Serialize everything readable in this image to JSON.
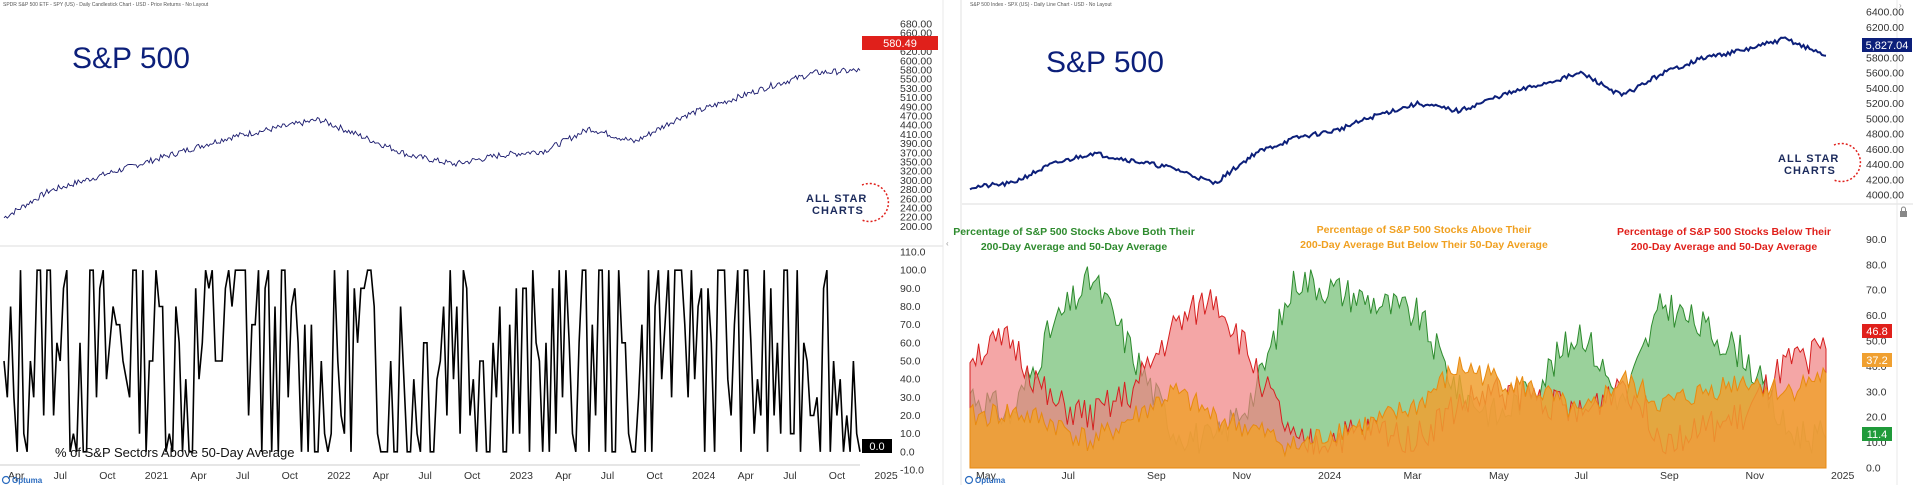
{
  "left_chart": {
    "header": "SPDR S&P 500 ETF - SPY (US) - Daily Candlestick Chart - USD - Price Returns - No Layout",
    "title": "S&P 500",
    "brand_line1": "ALL STAR",
    "brand_line2": "CHARTS",
    "logo": "Optuma",
    "x_labels": [
      "Apr",
      "Jul",
      "Oct",
      "2021",
      "Apr",
      "Jul",
      "Oct",
      "2022",
      "Apr",
      "Jul",
      "Oct",
      "2023",
      "Apr",
      "Jul",
      "Oct",
      "2024",
      "Apr",
      "Jul",
      "Oct",
      "2025"
    ],
    "upper_axis": {
      "ticks": [
        "680.00",
        "660.00",
        "640.00",
        "620.00",
        "600.00",
        "580.00",
        "550.00",
        "530.00",
        "510.00",
        "490.00",
        "470.00",
        "440.00",
        "410.00",
        "390.00",
        "370.00",
        "350.00",
        "320.00",
        "300.00",
        "280.00",
        "260.00",
        "240.00",
        "220.00",
        "200.00"
      ],
      "last_value": "580.49"
    },
    "lower_axis": {
      "ticks": [
        "110.0",
        "100.0",
        "90.0",
        "80.0",
        "70.0",
        "60.0",
        "50.0",
        "40.0",
        "30.0",
        "20.0",
        "10.0",
        "0.0",
        "-10.0"
      ],
      "last_value": "0.0"
    },
    "lower_caption": "% of S&P Sectors Above 50-Day Average"
  },
  "right_chart": {
    "header": "S&P 500 Index - SPX (US) - Daily Line Chart - USD - No Layout",
    "title": "S&P 500",
    "brand_line1": "ALL STAR",
    "brand_line2": "CHARTS",
    "logo": "Optuma",
    "x_labels": [
      "May",
      "Jul",
      "Sep",
      "Nov",
      "2024",
      "Mar",
      "May",
      "Jul",
      "Sep",
      "Nov",
      "2025"
    ],
    "upper_axis": {
      "ticks": [
        "6400.00",
        "6200.00",
        "6000.00",
        "5800.00",
        "5600.00",
        "5400.00",
        "5200.00",
        "5000.00",
        "4800.00",
        "4600.00",
        "4400.00",
        "4200.00",
        "4000.00"
      ],
      "last_value": "5,827.04"
    },
    "lower_axis": {
      "ticks": [
        "90.0",
        "80.0",
        "70.0",
        "60.0",
        "50.0",
        "40.0",
        "30.0",
        "20.0",
        "10.0",
        "0.0"
      ]
    },
    "series_last_values": {
      "red": "46.8",
      "orange": "37.2",
      "green": "11.4"
    },
    "annotations": {
      "green": [
        "Percentage of S&P 500 Stocks Above Both Their",
        "200-Day Average and 50-Day Average"
      ],
      "orange": [
        "Percentage of S&P 500 Stocks Above Their",
        "200-Day Average But Below Their 50-Day Average"
      ],
      "red": [
        "Percentage of S&P 500 Stocks Below Their",
        "200-Day Average and 50-Day Average"
      ]
    }
  },
  "colors": {
    "navy": "#0c1f7a",
    "price_label_red": "#e0201b",
    "green_fill": "#78c27a",
    "green_line": "#2e8b2e",
    "red_fill": "#f08080",
    "red_line": "#d62020",
    "orange_fill": "#f0a030",
    "orange_line": "#e88a10",
    "annotation_green": "#2e8b2e",
    "annotation_orange": "#f0a020",
    "annotation_red": "#e0201b"
  },
  "chart_data": [
    {
      "type": "line",
      "title": "S&P 500",
      "series": [
        {
          "name": "",
          "x": [
            "2020-04",
            "2020-07",
            "2020-10",
            "2021-01",
            "2021-04",
            "2021-07",
            "2021-10",
            "2022-01",
            "2022-04",
            "2022-07",
            "2022-10",
            "2023-01",
            "2023-04",
            "2023-07",
            "2023-10",
            "2024-01",
            "2024-04",
            "2024-07",
            "2024-10",
            "2024-12"
          ],
          "values": [
            250,
            310,
            340,
            370,
            400,
            430,
            450,
            470,
            430,
            390,
            370,
            390,
            400,
            450,
            420,
            475,
            510,
            545,
            575,
            580.49
          ]
        }
      ],
      "ylim": [
        200,
        680
      ]
    },
    {
      "type": "line",
      "title": "",
      "series": [
        {
          "name": "",
          "x": [
            "2020-04",
            "2020-07",
            "2020-10",
            "2021-01",
            "2021-04",
            "2021-07",
            "2021-10",
            "2022-01",
            "2022-04",
            "2022-07",
            "2022-10",
            "2023-01",
            "2023-04",
            "2023-07",
            "2023-10",
            "2024-01",
            "2024-04",
            "2024-07",
            "2024-10",
            "2024-12"
          ],
          "values": [
            10,
            95,
            40,
            85,
            30,
            90,
            50,
            20,
            60,
            30,
            80,
            50,
            30,
            70,
            20,
            90,
            60,
            40,
            70,
            0
          ]
        }
      ],
      "xlabel": "",
      "ylabel": "% of S&P Sectors Above 50-Day Average",
      "ylim": [
        -10,
        110
      ]
    },
    {
      "type": "line",
      "title": "S&P 500",
      "series": [
        {
          "name": "",
          "x": [
            "2023-04",
            "2023-05",
            "2023-06",
            "2023-07",
            "2023-08",
            "2023-09",
            "2023-10",
            "2023-11",
            "2023-12",
            "2024-01",
            "2024-02",
            "2024-03",
            "2024-04",
            "2024-05",
            "2024-06",
            "2024-07",
            "2024-08",
            "2024-09",
            "2024-10",
            "2024-11",
            "2024-12",
            "2025-01"
          ],
          "values": [
            4100,
            4150,
            4400,
            4550,
            4450,
            4350,
            4150,
            4550,
            4750,
            4850,
            5050,
            5200,
            5100,
            5300,
            5450,
            5600,
            5300,
            5600,
            5800,
            5900,
            6050,
            5827.04
          ]
        }
      ],
      "ylim": [
        4000,
        6400
      ]
    },
    {
      "type": "area",
      "title": "",
      "categories": [
        "2023-04",
        "2023-05",
        "2023-06",
        "2023-07",
        "2023-08",
        "2023-09",
        "2023-10",
        "2023-11",
        "2023-12",
        "2024-01",
        "2024-02",
        "2024-03",
        "2024-04",
        "2024-05",
        "2024-06",
        "2024-07",
        "2024-08",
        "2024-09",
        "2024-10",
        "2024-11",
        "2024-12",
        "2025-01"
      ],
      "series": [
        {
          "name": "Percentage of S&P 500 Stocks Above Both Their 200-Day Average and 50-Day Average",
          "values": [
            30,
            20,
            55,
            75,
            45,
            15,
            10,
            30,
            75,
            70,
            65,
            60,
            30,
            20,
            35,
            55,
            25,
            65,
            55,
            45,
            15,
            11.4
          ]
        },
        {
          "name": "Percentage of S&P 500 Stocks Above Their 200-Day Average But Below Their 50-Day Average",
          "values": [
            20,
            22,
            18,
            10,
            20,
            30,
            20,
            15,
            8,
            15,
            18,
            25,
            40,
            35,
            30,
            20,
            35,
            25,
            30,
            35,
            30,
            37.2
          ]
        },
        {
          "name": "Percentage of S&P 500 Stocks Below Their 200-Day Average and 50-Day Average",
          "values": [
            45,
            50,
            25,
            20,
            30,
            55,
            68,
            40,
            8,
            12,
            15,
            12,
            25,
            30,
            28,
            20,
            35,
            12,
            15,
            20,
            40,
            46.8
          ]
        }
      ],
      "ylim": [
        0,
        100
      ]
    }
  ]
}
